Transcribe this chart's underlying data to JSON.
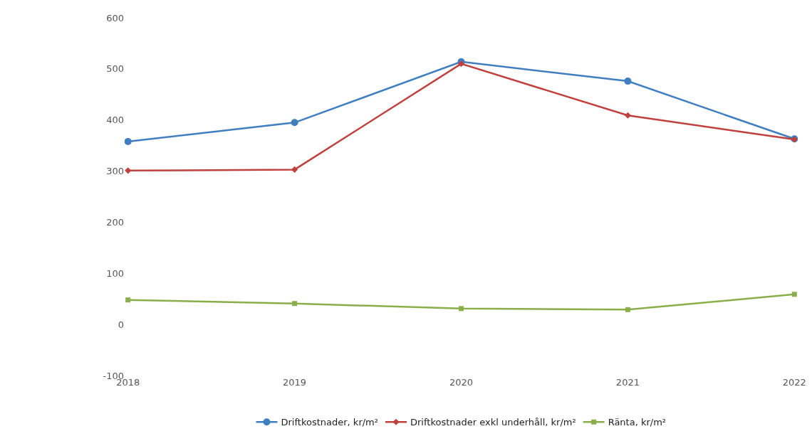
{
  "chart_data": {
    "type": "line",
    "categories": [
      "2018",
      "2019",
      "2020",
      "2021",
      "2022"
    ],
    "series": [
      {
        "name": "Driftkostnader, kr/m²",
        "color": "#3f7fc0",
        "marker": "circle",
        "values": [
          358,
          395,
          514,
          476,
          363
        ]
      },
      {
        "name": "Driftkostnader exkl underhåll, kr/m²",
        "color": "#c0403d",
        "marker": "diamond",
        "values": [
          301,
          303,
          510,
          409,
          362
        ]
      },
      {
        "name": "Ränta, kr/m²",
        "color": "#8aae4a",
        "marker": "square",
        "values": [
          48,
          41,
          31,
          29,
          59
        ]
      }
    ],
    "ylim": [
      -100,
      600
    ],
    "yticks": [
      -100,
      0,
      100,
      200,
      300,
      400,
      500,
      600
    ],
    "grid": false,
    "legend": "bottom",
    "line_style": "solid"
  }
}
